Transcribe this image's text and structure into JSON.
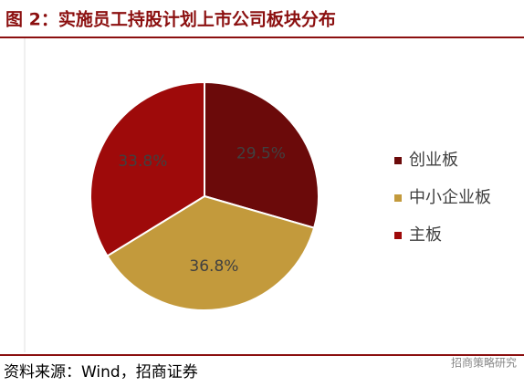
{
  "chart_data": {
    "type": "pie",
    "title": "图 2：实施员工持股计划上市公司板块分布",
    "categories": [
      "创业板",
      "中小企业板",
      "主板"
    ],
    "values": [
      29.5,
      36.8,
      33.8
    ],
    "value_labels": [
      "29.5%",
      "36.8%",
      "33.8%"
    ],
    "colors": [
      "#6b0a0a",
      "#c39a3c",
      "#9e0a0a"
    ],
    "legend": "right"
  },
  "source": "资料来源：Wind，招商证券",
  "watermark": "招商策略研究"
}
